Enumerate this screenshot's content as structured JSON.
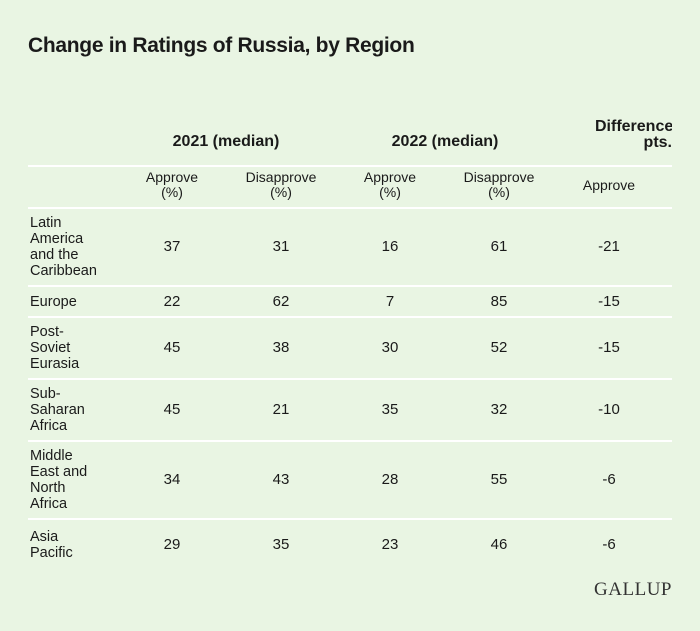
{
  "title": "Change in Ratings of Russia, by Region",
  "logo": "GALLUP",
  "chart_data": {
    "type": "table",
    "title": "Change in Ratings of Russia, by Region",
    "column_groups": [
      {
        "label": "2021 (median)"
      },
      {
        "label": "2022 (median)"
      },
      {
        "label_line1": "Difference,",
        "label_line2": "pts."
      }
    ],
    "columns": [
      {
        "line1": "Approve",
        "line2": "(%)"
      },
      {
        "line1": "Disapprove",
        "line2": "(%)"
      },
      {
        "line1": "Approve",
        "line2": "(%)"
      },
      {
        "line1": "Disapprove",
        "line2": "(%)"
      },
      {
        "line1": "Approve",
        "line2": ""
      }
    ],
    "rows": [
      {
        "region": "Latin America and the Caribbean",
        "lines": [
          "Latin",
          "America",
          "and the",
          "Caribbean"
        ],
        "values": [
          37,
          31,
          16,
          61,
          -21
        ]
      },
      {
        "region": "Europe",
        "lines": [
          "Europe"
        ],
        "values": [
          22,
          62,
          7,
          85,
          -15
        ]
      },
      {
        "region": "Post-Soviet Eurasia",
        "lines": [
          "Post-",
          "Soviet",
          "Eurasia"
        ],
        "values": [
          45,
          38,
          30,
          52,
          -15
        ]
      },
      {
        "region": "Sub-Saharan Africa",
        "lines": [
          "Sub-",
          "Saharan",
          "Africa"
        ],
        "values": [
          45,
          21,
          35,
          32,
          -10
        ]
      },
      {
        "region": "Middle East and North Africa",
        "lines": [
          "Middle",
          "East and",
          "North",
          "Africa"
        ],
        "values": [
          34,
          43,
          28,
          55,
          -6
        ]
      },
      {
        "region": "Asia Pacific",
        "lines": [
          "Asia",
          "Pacific"
        ],
        "values": [
          29,
          35,
          23,
          46,
          -6
        ]
      }
    ]
  }
}
